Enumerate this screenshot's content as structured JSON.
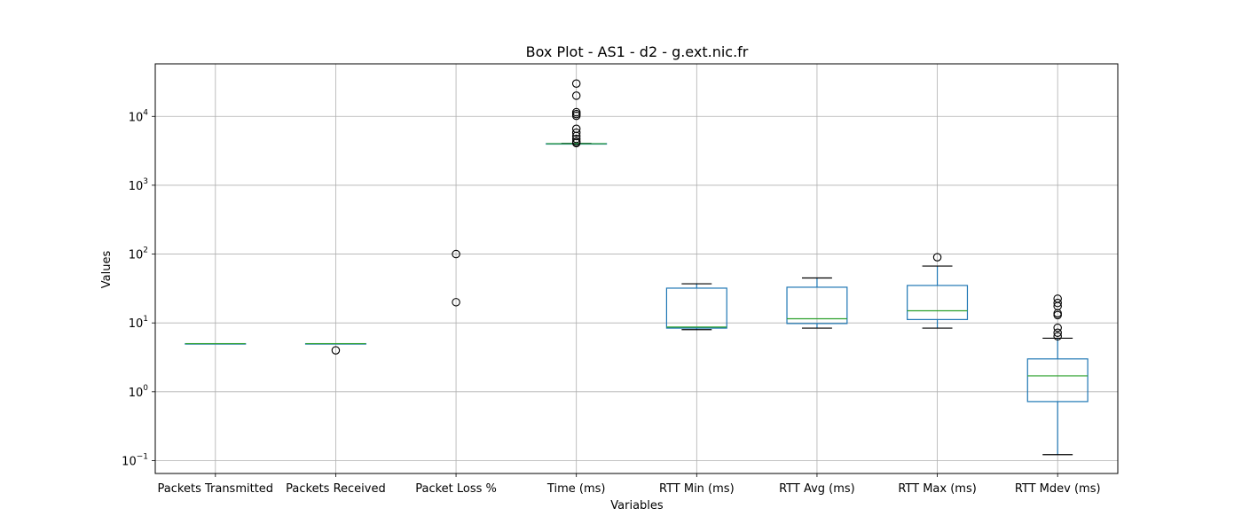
{
  "chart_data": {
    "type": "box",
    "title": "Box Plot - AS1 - d2 - g.ext.nic.fr",
    "xlabel": "Variables",
    "ylabel": "Values",
    "yscale": "log",
    "ylim": [
      0.065,
      58000
    ],
    "y_ticks": [
      {
        "value": 0.1,
        "base": "10",
        "exp": "−1"
      },
      {
        "value": 1,
        "base": "10",
        "exp": "0"
      },
      {
        "value": 10,
        "base": "10",
        "exp": "1"
      },
      {
        "value": 100,
        "base": "10",
        "exp": "2"
      },
      {
        "value": 1000,
        "base": "10",
        "exp": "3"
      },
      {
        "value": 10000,
        "base": "10",
        "exp": "4"
      }
    ],
    "grid": true,
    "colors": {
      "box": "#1f77b4",
      "median": "#2ca02c",
      "whisker": "#000000",
      "grid": "#b0b0b0"
    },
    "categories": [
      "Packets Transmitted",
      "Packets Received",
      "Packet Loss %",
      "Time (ms)",
      "RTT Min (ms)",
      "RTT Avg (ms)",
      "RTT Max (ms)",
      "RTT Mdev (ms)"
    ],
    "boxes": [
      {
        "label": "Packets Transmitted",
        "whislo": 5,
        "q1": 5,
        "med": 5,
        "q3": 5,
        "whishi": 5,
        "fliers": []
      },
      {
        "label": "Packets Received",
        "whislo": 5,
        "q1": 5,
        "med": 5,
        "q3": 5,
        "whishi": 5,
        "fliers": [
          4
        ]
      },
      {
        "label": "Packet Loss %",
        "whislo": 0,
        "q1": 0,
        "med": 0,
        "q3": 0,
        "whishi": 0,
        "fliers": [
          20,
          100
        ]
      },
      {
        "label": "Time (ms)",
        "whislo": 4000,
        "q1": 4005,
        "med": 4010,
        "q3": 4020,
        "whishi": 4050,
        "fliers": [
          4100,
          4300,
          4700,
          5200,
          5800,
          6600,
          10200,
          10800,
          11500,
          20000,
          30000
        ]
      },
      {
        "label": "RTT Min (ms)",
        "whislo": 8.0,
        "q1": 8.4,
        "med": 8.7,
        "q3": 32,
        "whishi": 37,
        "fliers": []
      },
      {
        "label": "RTT Avg (ms)",
        "whislo": 8.4,
        "q1": 9.8,
        "med": 11.5,
        "q3": 33,
        "whishi": 45,
        "fliers": []
      },
      {
        "label": "RTT Max (ms)",
        "whislo": 8.4,
        "q1": 11.2,
        "med": 15,
        "q3": 35,
        "whishi": 67,
        "fliers": [
          90
        ]
      },
      {
        "label": "RTT Mdev (ms)",
        "whislo": 0.122,
        "q1": 0.72,
        "med": 1.7,
        "q3": 3.0,
        "whishi": 6.0,
        "fliers": [
          6.4,
          7.2,
          8.5,
          13,
          13.8,
          17.5,
          19.5,
          22.5
        ]
      }
    ]
  }
}
